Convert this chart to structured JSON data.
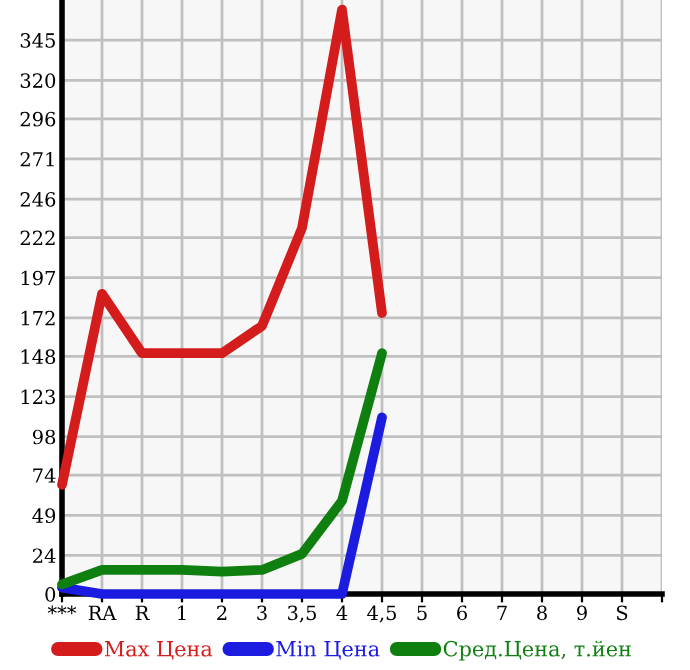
{
  "chart_data": {
    "type": "line",
    "categories": [
      "***",
      "RA",
      "R",
      "1",
      "2",
      "3",
      "3,5",
      "4",
      "4,5",
      "5",
      "6",
      "7",
      "8",
      "9",
      "S",
      null
    ],
    "series": [
      {
        "name": "Max Цена",
        "color": "#d41c1c",
        "values": [
          68,
          187,
          150,
          150,
          150,
          167,
          228,
          364,
          175,
          null,
          null,
          null,
          null,
          null,
          null,
          null
        ]
      },
      {
        "name": "Min Цена",
        "color": "#1c1ce0",
        "values": [
          4,
          0,
          0,
          0,
          0,
          0,
          0,
          0,
          110,
          null,
          null,
          null,
          null,
          null,
          null,
          null
        ]
      },
      {
        "name": "Сред.Цена, т.йен",
        "color": "#0f7f0f",
        "values": [
          6,
          15,
          15,
          15,
          14,
          15,
          25,
          58,
          150,
          null,
          null,
          null,
          null,
          null,
          null,
          null
        ]
      }
    ],
    "ylim": [
      0,
      370
    ],
    "yticks": [
      0,
      24,
      49,
      74,
      98,
      123,
      148,
      172,
      197,
      222,
      246,
      271,
      296,
      320,
      345
    ],
    "grid": true,
    "legend": "bottom",
    "marker": "none",
    "line_style": "solid"
  }
}
